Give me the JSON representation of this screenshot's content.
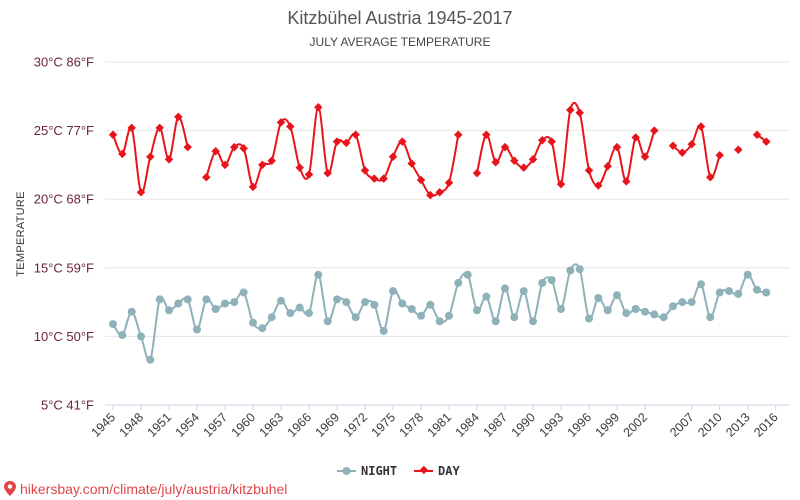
{
  "chart_data": {
    "type": "line",
    "title": "Kitzbühel Austria 1945-2017",
    "subtitle": "JULY AVERAGE TEMPERATURE",
    "ylabel": "TEMPERATURE",
    "xlabel": "",
    "ylim": [
      5,
      30
    ],
    "y_ticks": [
      5,
      10,
      15,
      20,
      25,
      30
    ],
    "y_tick_labels": [
      "5°C 41°F",
      "10°C 50°F",
      "15°C 59°F",
      "20°C 68°F",
      "25°C 77°F",
      "30°C 86°F"
    ],
    "x_range": [
      1945,
      2017
    ],
    "x_ticks": [
      1945,
      1948,
      1951,
      1954,
      1957,
      1960,
      1963,
      1966,
      1969,
      1972,
      1975,
      1978,
      1981,
      1984,
      1987,
      1990,
      1993,
      1996,
      1999,
      2002,
      2007,
      2010,
      2013,
      2016
    ],
    "grid": true,
    "legend_position": "bottom",
    "series": [
      {
        "name": "NIGHT",
        "color": "#8fb1b9",
        "points": [
          [
            1945,
            10.9
          ],
          [
            1946,
            10.1
          ],
          [
            1947,
            11.8
          ],
          [
            1948,
            10.0
          ],
          [
            1949,
            8.3
          ],
          [
            1950,
            12.7
          ],
          [
            1951,
            11.9
          ],
          [
            1952,
            12.4
          ],
          [
            1953,
            12.7
          ],
          [
            1954,
            10.5
          ],
          [
            1955,
            12.7
          ],
          [
            1956,
            12.0
          ],
          [
            1957,
            12.4
          ],
          [
            1958,
            12.5
          ],
          [
            1959,
            13.2
          ],
          [
            1960,
            11.0
          ],
          [
            1961,
            10.6
          ],
          [
            1962,
            11.4
          ],
          [
            1963,
            12.6
          ],
          [
            1964,
            11.7
          ],
          [
            1965,
            12.1
          ],
          [
            1966,
            11.7
          ],
          [
            1967,
            14.5
          ],
          [
            1968,
            11.1
          ],
          [
            1969,
            12.7
          ],
          [
            1970,
            12.5
          ],
          [
            1971,
            11.4
          ],
          [
            1972,
            12.5
          ],
          [
            1973,
            12.3
          ],
          [
            1974,
            10.4
          ],
          [
            1975,
            13.3
          ],
          [
            1976,
            12.4
          ],
          [
            1977,
            12.0
          ],
          [
            1978,
            11.5
          ],
          [
            1979,
            12.3
          ],
          [
            1980,
            11.1
          ],
          [
            1981,
            11.5
          ],
          [
            1982,
            13.9
          ],
          [
            1983,
            14.5
          ],
          [
            1984,
            11.9
          ],
          [
            1985,
            12.9
          ],
          [
            1986,
            11.1
          ],
          [
            1987,
            13.5
          ],
          [
            1988,
            11.4
          ],
          [
            1989,
            13.3
          ],
          [
            1990,
            11.1
          ],
          [
            1991,
            13.9
          ],
          [
            1992,
            14.1
          ],
          [
            1993,
            12.0
          ],
          [
            1994,
            14.8
          ],
          [
            1995,
            14.9
          ],
          [
            1996,
            11.3
          ],
          [
            1997,
            12.8
          ],
          [
            1998,
            11.9
          ],
          [
            1999,
            13.0
          ],
          [
            2000,
            11.7
          ],
          [
            2001,
            12.0
          ],
          [
            2002,
            11.8
          ],
          [
            2003,
            11.6
          ],
          [
            2004,
            11.4
          ],
          [
            2005,
            12.2
          ],
          [
            2006,
            12.5
          ],
          [
            2007,
            12.5
          ],
          [
            2008,
            13.8
          ],
          [
            2009,
            11.4
          ],
          [
            2010,
            13.2
          ],
          [
            2011,
            13.3
          ],
          [
            2012,
            13.1
          ],
          [
            2013,
            14.5
          ],
          [
            2014,
            13.4
          ],
          [
            2015,
            13.2
          ]
        ]
      },
      {
        "name": "DAY",
        "color": "#e8141c",
        "points": [
          [
            1945,
            24.7
          ],
          [
            1946,
            23.3
          ],
          [
            1947,
            25.2
          ],
          [
            1948,
            20.5
          ],
          [
            1949,
            23.1
          ],
          [
            1950,
            25.2
          ],
          [
            1951,
            22.9
          ],
          [
            1952,
            26.0
          ],
          [
            1953,
            23.8
          ],
          [
            1954,
            null
          ],
          [
            1955,
            21.6
          ],
          [
            1956,
            23.5
          ],
          [
            1957,
            22.5
          ],
          [
            1958,
            23.8
          ],
          [
            1959,
            23.7
          ],
          [
            1960,
            20.9
          ],
          [
            1961,
            22.5
          ],
          [
            1962,
            22.8
          ],
          [
            1963,
            25.6
          ],
          [
            1964,
            25.3
          ],
          [
            1965,
            22.3
          ],
          [
            1966,
            21.8
          ],
          [
            1967,
            26.7
          ],
          [
            1968,
            21.9
          ],
          [
            1969,
            24.2
          ],
          [
            1970,
            24.1
          ],
          [
            1971,
            24.7
          ],
          [
            1972,
            22.1
          ],
          [
            1973,
            21.5
          ],
          [
            1974,
            21.5
          ],
          [
            1975,
            23.1
          ],
          [
            1976,
            24.2
          ],
          [
            1977,
            22.6
          ],
          [
            1978,
            21.4
          ],
          [
            1979,
            20.3
          ],
          [
            1980,
            20.5
          ],
          [
            1981,
            21.2
          ],
          [
            1982,
            24.7
          ],
          [
            1983,
            null
          ],
          [
            1984,
            21.9
          ],
          [
            1985,
            24.7
          ],
          [
            1986,
            22.7
          ],
          [
            1987,
            23.8
          ],
          [
            1988,
            22.8
          ],
          [
            1989,
            22.3
          ],
          [
            1990,
            22.9
          ],
          [
            1991,
            24.3
          ],
          [
            1992,
            24.2
          ],
          [
            1993,
            21.1
          ],
          [
            1994,
            26.5
          ],
          [
            1995,
            26.3
          ],
          [
            1996,
            22.1
          ],
          [
            1997,
            21.0
          ],
          [
            1998,
            22.4
          ],
          [
            1999,
            23.8
          ],
          [
            2000,
            21.3
          ],
          [
            2001,
            24.5
          ],
          [
            2002,
            23.1
          ],
          [
            2003,
            25.0
          ],
          [
            2004,
            null
          ],
          [
            2005,
            23.9
          ],
          [
            2006,
            23.4
          ],
          [
            2007,
            24.0
          ],
          [
            2008,
            25.3
          ],
          [
            2009,
            21.6
          ],
          [
            2010,
            23.2
          ],
          [
            2011,
            null
          ],
          [
            2012,
            23.6
          ],
          [
            2013,
            null
          ],
          [
            2014,
            24.7
          ],
          [
            2015,
            24.2
          ]
        ]
      }
    ]
  },
  "footer": {
    "source_text": "hikersbay.com/climate/july/austria/kitzbuhel"
  }
}
